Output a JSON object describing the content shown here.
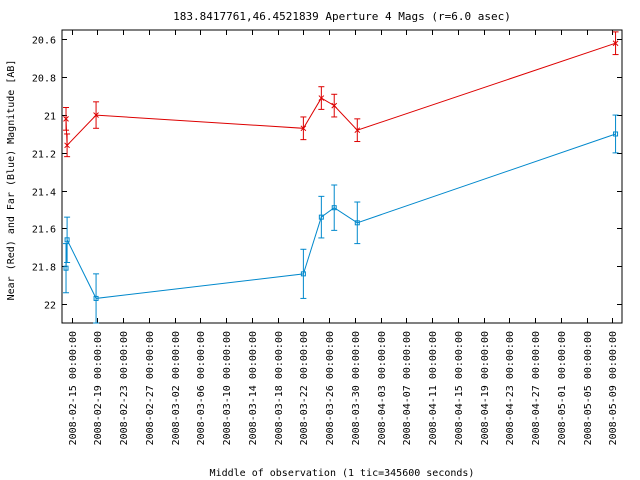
{
  "chart_data": {
    "type": "line",
    "title": "183.8417761,46.4521839   Aperture 4 Mags (r=6.0 asec)",
    "xlabel": "Middle of observation (1 tic=345600 seconds)",
    "ylabel": "Near (Red) and Far (Blue) Magnitude [AB]",
    "y_inverted": true,
    "ylim": [
      20.55,
      22.1
    ],
    "y_ticks": [
      "20.6",
      "20.8",
      "21",
      "21.2",
      "21.4",
      "21.6",
      "21.8",
      "22"
    ],
    "xlim": [
      "2008-02-13T12:00:00",
      "2008-05-10T12:00:00"
    ],
    "x_ticks": [
      "2008-02-15 00:00:00",
      "2008-02-19 00:00:00",
      "2008-02-23 00:00:00",
      "2008-02-27 00:00:00",
      "2008-03-02 00:00:00",
      "2008-03-06 00:00:00",
      "2008-03-10 00:00:00",
      "2008-03-14 00:00:00",
      "2008-03-18 00:00:00",
      "2008-03-22 00:00:00",
      "2008-03-26 00:00:00",
      "2008-03-30 00:00:00",
      "2008-04-03 00:00:00",
      "2008-04-07 00:00:00",
      "2008-04-11 00:00:00",
      "2008-04-15 00:00:00",
      "2008-04-19 00:00:00",
      "2008-04-23 00:00:00",
      "2008-04-27 00:00:00",
      "2008-05-01 00:00:00",
      "2008-05-05 00:00:00",
      "2008-05-09 00:00:00"
    ],
    "grid": false,
    "series": [
      {
        "color": "#dd0000",
        "marker": "x",
        "points": [
          {
            "x": "2008-02-14T03:00:00",
            "y": 21.02,
            "err": 0.06
          },
          {
            "x": "2008-02-14T07:00:00",
            "y": 21.16,
            "err": 0.06
          },
          {
            "x": "2008-02-18T19:00:00",
            "y": 21.0,
            "err": 0.07
          },
          {
            "x": "2008-03-22T00:00:00",
            "y": 21.07,
            "err": 0.06
          },
          {
            "x": "2008-03-24T19:00:00",
            "y": 20.91,
            "err": 0.06
          },
          {
            "x": "2008-03-26T19:00:00",
            "y": 20.95,
            "err": 0.06
          },
          {
            "x": "2008-03-30T09:00:00",
            "y": 21.08,
            "err": 0.06
          },
          {
            "x": "2008-05-09T12:00:00",
            "y": 20.62,
            "err": 0.06
          }
        ]
      },
      {
        "color": "#0088cc",
        "marker": "square",
        "points": [
          {
            "x": "2008-02-14T03:00:00",
            "y": 21.81,
            "err": 0.13
          },
          {
            "x": "2008-02-14T07:00:00",
            "y": 21.66,
            "err": 0.12
          },
          {
            "x": "2008-02-18T19:00:00",
            "y": 21.97,
            "err": 0.13
          },
          {
            "x": "2008-03-22T00:00:00",
            "y": 21.84,
            "err": 0.13
          },
          {
            "x": "2008-03-24T19:00:00",
            "y": 21.54,
            "err": 0.11
          },
          {
            "x": "2008-03-26T19:00:00",
            "y": 21.49,
            "err": 0.12
          },
          {
            "x": "2008-03-30T09:00:00",
            "y": 21.57,
            "err": 0.11
          },
          {
            "x": "2008-05-09T12:00:00",
            "y": 21.1,
            "err": 0.1
          }
        ]
      }
    ]
  }
}
